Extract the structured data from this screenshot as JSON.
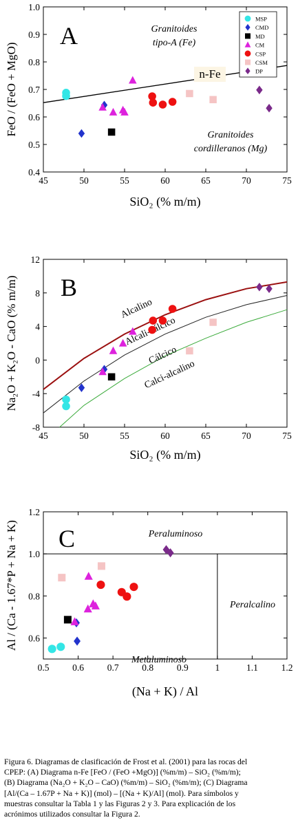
{
  "legend": {
    "entries": [
      {
        "code": "MSP",
        "color": "#33e6e6",
        "marker": "circle"
      },
      {
        "code": "CMD",
        "color": "#2233cc",
        "marker": "diamond"
      },
      {
        "code": "MD",
        "color": "#000000",
        "marker": "square"
      },
      {
        "code": "CM",
        "color": "#dd22dd",
        "marker": "triangle"
      },
      {
        "code": "CSP",
        "color": "#ee1111",
        "marker": "circle"
      },
      {
        "code": "CSM",
        "color": "#f5c4c4",
        "marker": "square"
      },
      {
        "code": "DP",
        "color": "#7a2a8a",
        "marker": "diamond"
      }
    ]
  },
  "caption": {
    "lines": [
      "Figura 6. Diagramas de clasificación de Frost et al. (2001) para las rocas del",
      "CPEP: (A) Diagrama n-Fe [FeO / (FeO +MgO)] (%m/m) – SiO₂ (%m/m);",
      "(B) Diagrama (Na₂O + K₂O – CaO) (%m/m) – SiO₂ (%m/m); (C) Diagrama",
      "[Al/(Ca – 1.67P + Na + K)] (mol) – [(Na + K)/Al] (mol). Para símbolos y",
      "muestras consultar la Tabla 1 y las Figuras 2 y 3. Para explicación de los",
      "acrónimos utilizados consultar la Figura 2."
    ]
  },
  "chart_data": [
    {
      "panel_letter": "A",
      "type": "scatter",
      "xlabel": "SiO₂ (% m/m)",
      "ylabel": "FeO / (FeO + MgO)",
      "xlim": [
        45,
        75
      ],
      "ylim": [
        0.4,
        1.0
      ],
      "xticks": [
        45,
        50,
        55,
        60,
        65,
        70,
        75
      ],
      "yticks": [
        0.4,
        0.5,
        0.6,
        0.7,
        0.8,
        0.9,
        1.0
      ],
      "ytick_labels": [
        "0.4",
        "0.5",
        "0.6",
        "0.7",
        "0.8",
        "0.9",
        "1.0"
      ],
      "annotations": [
        "Granitoides",
        "tipo-A (Fe)",
        "n-Fe",
        "Granitoides",
        "cordilleranos (Mg)"
      ],
      "boundary": {
        "name": "n-Fe",
        "x": [
          45,
          75
        ],
        "y": [
          0.652,
          0.787
        ]
      },
      "series": [
        {
          "name": "MSP",
          "x": [
            47.8,
            47.8
          ],
          "y": [
            0.688,
            0.676
          ]
        },
        {
          "name": "CMD",
          "x": [
            49.7,
            52.5
          ],
          "y": [
            0.54,
            0.643
          ]
        },
        {
          "name": "MD",
          "x": [
            53.4
          ],
          "y": [
            0.545
          ]
        },
        {
          "name": "CM",
          "x": [
            52.3,
            53.6,
            54.8,
            55.0,
            56.0
          ],
          "y": [
            0.635,
            0.617,
            0.625,
            0.617,
            0.733
          ]
        },
        {
          "name": "CSP",
          "x": [
            58.4,
            58.5,
            59.7,
            60.9
          ],
          "y": [
            0.675,
            0.652,
            0.645,
            0.655
          ]
        },
        {
          "name": "CSM",
          "x": [
            63.0,
            65.9
          ],
          "y": [
            0.685,
            0.663
          ]
        },
        {
          "name": "DP",
          "x": [
            71.6,
            72.8
          ],
          "y": [
            0.698,
            0.632
          ]
        }
      ]
    },
    {
      "panel_letter": "B",
      "type": "scatter",
      "xlabel": "SiO₂ (% m/m)",
      "ylabel": "Na₂O + K₂O - CaO (% m/m)",
      "xlim": [
        45,
        75
      ],
      "ylim": [
        -8,
        12
      ],
      "xticks": [
        45,
        50,
        55,
        60,
        65,
        70,
        75
      ],
      "yticks": [
        -8,
        -4,
        0,
        4,
        8,
        12
      ],
      "ytick_labels": [
        "-8",
        "-4",
        "0",
        "4",
        "8",
        "12"
      ],
      "annotations": [
        "Alcalino",
        "Alcali-cálcico",
        "Cálcico",
        "Calci-alcalino"
      ],
      "boundaries": [
        {
          "x": [
            45,
            50,
            55,
            60,
            65,
            70,
            75
          ],
          "y": [
            -3.5,
            0.2,
            3.1,
            5.4,
            7.2,
            8.5,
            9.3
          ],
          "color": "#9b1010"
        },
        {
          "x": [
            45,
            50,
            55,
            60,
            65,
            70,
            75
          ],
          "y": [
            -6.3,
            -2.5,
            0.6,
            3.1,
            5.1,
            6.6,
            7.7
          ],
          "color": "#222222"
        },
        {
          "x": [
            47,
            50,
            55,
            60,
            65,
            70,
            75
          ],
          "y": [
            -8.0,
            -5.4,
            -2.2,
            0.5,
            2.6,
            4.5,
            6.0
          ],
          "color": "#3aaa3a"
        }
      ],
      "series": [
        {
          "name": "MSP",
          "x": [
            47.8,
            47.8
          ],
          "y": [
            -4.7,
            -5.5
          ]
        },
        {
          "name": "CMD",
          "x": [
            49.7,
            52.5
          ],
          "y": [
            -3.3,
            -1.1
          ]
        },
        {
          "name": "MD",
          "x": [
            53.4
          ],
          "y": [
            -2.0
          ]
        },
        {
          "name": "CM",
          "x": [
            52.3,
            53.6,
            54.8,
            56.0
          ],
          "y": [
            -1.4,
            1.1,
            2.0,
            3.4
          ]
        },
        {
          "name": "CSP",
          "x": [
            58.4,
            58.5,
            59.7,
            60.9
          ],
          "y": [
            3.6,
            4.7,
            4.7,
            6.1
          ]
        },
        {
          "name": "CSM",
          "x": [
            63.0,
            65.9
          ],
          "y": [
            1.1,
            4.5
          ]
        },
        {
          "name": "DP",
          "x": [
            71.6,
            72.8
          ],
          "y": [
            8.7,
            8.5
          ]
        }
      ]
    },
    {
      "panel_letter": "C",
      "type": "scatter",
      "xlabel": "(Na + K) / Al",
      "ylabel": "Al / (Ca - 1.67*P + Na + K)",
      "xlim": [
        0.5,
        1.2
      ],
      "ylim": [
        0.5,
        1.2
      ],
      "xticks": [
        0.5,
        0.6,
        0.7,
        0.8,
        0.9,
        1.0,
        1.1,
        1.2
      ],
      "yticks": [
        0.6,
        0.8,
        1.0,
        1.2
      ],
      "xtick_labels": [
        "0.5",
        "0.6",
        "0.7",
        "0.8",
        "0.9",
        "1",
        "1.1",
        "1.2"
      ],
      "ytick_labels": [
        "0.6",
        "0.8",
        "1.0",
        "1.2"
      ],
      "annotations": [
        "Peraluminoso",
        "Peralcalino",
        "Metaluminoso"
      ],
      "series": [
        {
          "name": "MSP",
          "x": [
            0.525,
            0.55
          ],
          "y": [
            0.548,
            0.558
          ]
        },
        {
          "name": "CMD",
          "x": [
            0.595,
            0.597
          ],
          "y": [
            0.672,
            0.585
          ]
        },
        {
          "name": "MD",
          "x": [
            0.57
          ],
          "y": [
            0.687
          ]
        },
        {
          "name": "CM",
          "x": [
            0.59,
            0.628,
            0.63,
            0.643,
            0.65
          ],
          "y": [
            0.677,
            0.738,
            0.893,
            0.762,
            0.752
          ]
        },
        {
          "name": "CSP",
          "x": [
            0.665,
            0.725,
            0.74,
            0.76
          ],
          "y": [
            0.853,
            0.818,
            0.797,
            0.843
          ]
        },
        {
          "name": "CSM",
          "x": [
            0.553,
            0.667
          ],
          "y": [
            0.887,
            0.942
          ]
        },
        {
          "name": "DP",
          "x": [
            0.853,
            0.865
          ],
          "y": [
            1.02,
            1.005
          ]
        }
      ]
    }
  ]
}
